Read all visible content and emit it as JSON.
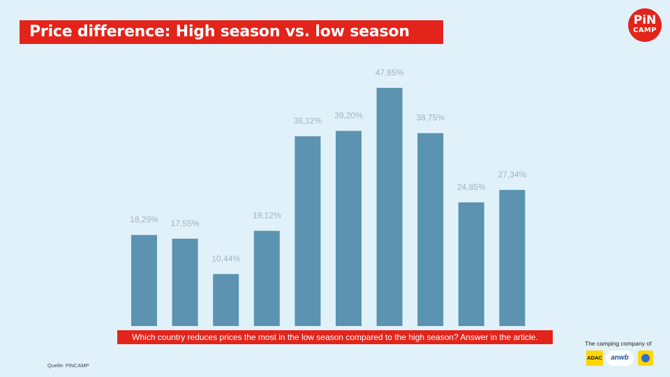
{
  "title": "Price difference: High season vs. low season",
  "logo": {
    "line1": "PiN",
    "line2": "CAMP"
  },
  "question": "Which country reduces prices the most in the low season compared to the high season? Answer in the article.",
  "source": "Quelle: PiNCAMP",
  "partners": {
    "label": "The camping company of",
    "adac": "ADAC",
    "anwb": "anwb",
    "tcs_icon": "tcs-emblem-icon"
  },
  "colors": {
    "accent": "#e3241b",
    "bar": "#5b93b1",
    "label": "#9fb3c0",
    "background": "#e1f1fa"
  },
  "chart_data": {
    "type": "bar",
    "values": [
      18.29,
      17.55,
      10.44,
      19.12,
      38.12,
      39.2,
      47.85,
      38.75,
      24.85,
      27.34
    ],
    "labels": [
      "18,29%",
      "17,55%",
      "10,44%",
      "19,12%",
      "38,12%",
      "39,20%",
      "47,85%",
      "38,75%",
      "24,85%",
      "27,34%"
    ],
    "title": "Price difference: High season vs. low season",
    "ylim": [
      0,
      50
    ],
    "grid": false
  }
}
